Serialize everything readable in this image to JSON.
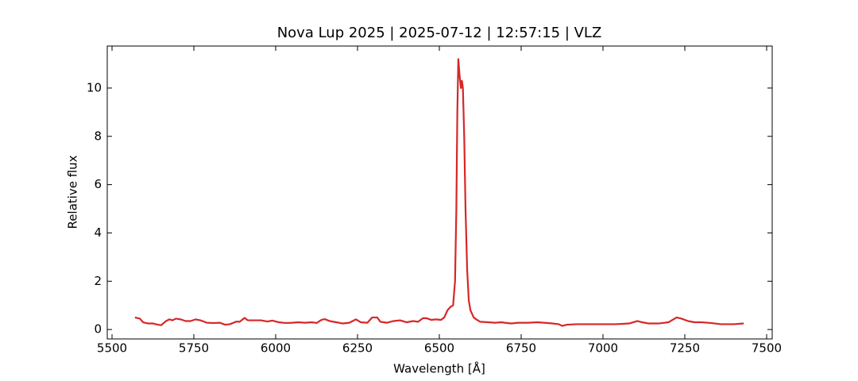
{
  "chart_data": {
    "type": "line",
    "title": "Nova Lup 2025 | 2025-07-12 | 12:57:15 | VLZ",
    "xlabel": "Wavelength [Å]",
    "ylabel": "Relative flux",
    "color": "#d62728",
    "x": [
      5570,
      5585,
      5595,
      5610,
      5625,
      5640,
      5650,
      5665,
      5675,
      5685,
      5695,
      5710,
      5725,
      5740,
      5755,
      5770,
      5790,
      5810,
      5830,
      5845,
      5860,
      5880,
      5890,
      5905,
      5915,
      5935,
      5955,
      5975,
      5990,
      6010,
      6030,
      6050,
      6070,
      6090,
      6110,
      6125,
      6140,
      6150,
      6165,
      6185,
      6205,
      6225,
      6245,
      6260,
      6280,
      6295,
      6310,
      6320,
      6340,
      6360,
      6380,
      6400,
      6420,
      6435,
      6450,
      6460,
      6475,
      6490,
      6505,
      6515,
      6525,
      6535,
      6542,
      6548,
      6552,
      6555,
      6558,
      6562,
      6566,
      6569,
      6572,
      6576,
      6580,
      6585,
      6590,
      6595,
      6605,
      6615,
      6625,
      6650,
      6670,
      6690,
      6700,
      6720,
      6740,
      6770,
      6800,
      6840,
      6865,
      6875,
      6890,
      6920,
      6960,
      7000,
      7040,
      7080,
      7105,
      7120,
      7140,
      7170,
      7200,
      7225,
      7240,
      7260,
      7280,
      7300,
      7330,
      7360,
      7400,
      7430
    ],
    "values": [
      0.5,
      0.45,
      0.3,
      0.25,
      0.25,
      0.2,
      0.18,
      0.35,
      0.42,
      0.38,
      0.45,
      0.42,
      0.35,
      0.35,
      0.42,
      0.38,
      0.28,
      0.27,
      0.28,
      0.2,
      0.22,
      0.33,
      0.32,
      0.48,
      0.38,
      0.38,
      0.38,
      0.33,
      0.37,
      0.3,
      0.27,
      0.28,
      0.3,
      0.28,
      0.3,
      0.27,
      0.4,
      0.43,
      0.35,
      0.3,
      0.25,
      0.28,
      0.42,
      0.3,
      0.28,
      0.5,
      0.5,
      0.32,
      0.28,
      0.35,
      0.38,
      0.3,
      0.35,
      0.32,
      0.47,
      0.47,
      0.4,
      0.42,
      0.4,
      0.5,
      0.8,
      0.95,
      1.0,
      2.0,
      5,
      9,
      11.2,
      10.5,
      10.0,
      10.3,
      10,
      8,
      5,
      2.5,
      1.2,
      0.8,
      0.5,
      0.4,
      0.32,
      0.3,
      0.28,
      0.3,
      0.28,
      0.25,
      0.28,
      0.28,
      0.3,
      0.26,
      0.22,
      0.15,
      0.2,
      0.22,
      0.22,
      0.22,
      0.22,
      0.25,
      0.35,
      0.3,
      0.25,
      0.25,
      0.3,
      0.5,
      0.45,
      0.35,
      0.3,
      0.3,
      0.27,
      0.22,
      0.22,
      0.25
    ],
    "xlim": [
      5485.4,
      7517
    ],
    "ylim": [
      -0.39,
      11.74
    ],
    "xticks": [
      5500,
      5750,
      6000,
      6250,
      6500,
      6750,
      7000,
      7250,
      7500
    ],
    "yticks": [
      0,
      2,
      4,
      6,
      8,
      10
    ],
    "tick_direction": "in",
    "mirror_ticks": true
  }
}
